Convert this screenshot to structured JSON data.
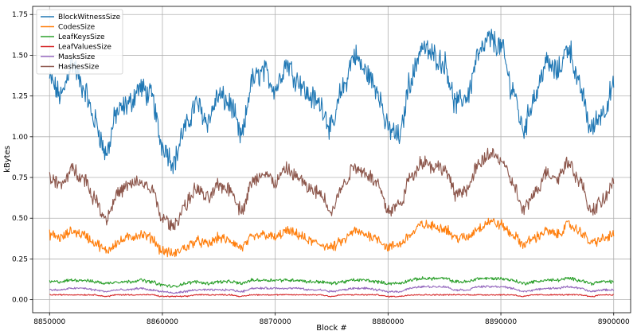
{
  "chart_data": {
    "type": "line",
    "title": "",
    "xlabel": "Block #",
    "ylabel": "kBytes",
    "xlim": [
      8848500,
      8901500
    ],
    "ylim": [
      -0.08,
      1.8
    ],
    "grid": true,
    "legend_position": "top-left",
    "xticks": [
      {
        "value": 8850000,
        "label": "8850000"
      },
      {
        "value": 8860000,
        "label": "8860000"
      },
      {
        "value": 8870000,
        "label": "8870000"
      },
      {
        "value": 8880000,
        "label": "8880000"
      },
      {
        "value": 8890000,
        "label": "8890000"
      },
      {
        "value": 8900000,
        "label": "8900000"
      }
    ],
    "yticks": [
      {
        "value": 0.0,
        "label": "0.00"
      },
      {
        "value": 0.25,
        "label": "0.25"
      },
      {
        "value": 0.5,
        "label": "0.50"
      },
      {
        "value": 0.75,
        "label": "0.75"
      },
      {
        "value": 1.0,
        "label": "1.00"
      },
      {
        "value": 1.25,
        "label": "1.25"
      },
      {
        "value": 1.5,
        "label": "1.50"
      },
      {
        "value": 1.75,
        "label": "1.75"
      }
    ],
    "x": [
      8850000,
      8851000,
      8852000,
      8853000,
      8854000,
      8855000,
      8856000,
      8857000,
      8858000,
      8859000,
      8860000,
      8861000,
      8862000,
      8863000,
      8864000,
      8865000,
      8866000,
      8867000,
      8868000,
      8869000,
      8870000,
      8871000,
      8872000,
      8873000,
      8874000,
      8875000,
      8876000,
      8877000,
      8878000,
      8879000,
      8880000,
      8881000,
      8882000,
      8883000,
      8884000,
      8885000,
      8886000,
      8887000,
      8888000,
      8889000,
      8890000,
      8891000,
      8892000,
      8893000,
      8894000,
      8895000,
      8896000,
      8897000,
      8898000,
      8899000,
      8900000
    ],
    "series": [
      {
        "name": "BlockWitnessSize",
        "color": "#1f77b4",
        "values": [
          1.35,
          1.25,
          1.45,
          1.3,
          1.1,
          0.9,
          1.15,
          1.2,
          1.3,
          1.25,
          0.95,
          0.85,
          1.05,
          1.2,
          1.1,
          1.25,
          1.2,
          1.0,
          1.35,
          1.4,
          1.3,
          1.45,
          1.35,
          1.25,
          1.2,
          1.05,
          1.3,
          1.5,
          1.4,
          1.3,
          1.05,
          1.0,
          1.35,
          1.55,
          1.5,
          1.45,
          1.2,
          1.25,
          1.5,
          1.6,
          1.55,
          1.3,
          1.05,
          1.25,
          1.45,
          1.4,
          1.55,
          1.3,
          1.05,
          1.15,
          1.3
        ]
      },
      {
        "name": "CodesSize",
        "color": "#ff7f0e",
        "values": [
          0.4,
          0.38,
          0.42,
          0.4,
          0.35,
          0.3,
          0.35,
          0.38,
          0.4,
          0.38,
          0.3,
          0.28,
          0.32,
          0.36,
          0.34,
          0.38,
          0.36,
          0.32,
          0.38,
          0.4,
          0.38,
          0.42,
          0.4,
          0.36,
          0.34,
          0.32,
          0.36,
          0.42,
          0.4,
          0.38,
          0.32,
          0.34,
          0.4,
          0.46,
          0.45,
          0.44,
          0.38,
          0.38,
          0.44,
          0.48,
          0.46,
          0.4,
          0.34,
          0.38,
          0.42,
          0.4,
          0.46,
          0.42,
          0.35,
          0.37,
          0.4
        ]
      },
      {
        "name": "LeafKeysSize",
        "color": "#2ca02c",
        "values": [
          0.11,
          0.11,
          0.12,
          0.12,
          0.11,
          0.1,
          0.11,
          0.11,
          0.12,
          0.11,
          0.09,
          0.08,
          0.1,
          0.11,
          0.1,
          0.11,
          0.11,
          0.1,
          0.12,
          0.12,
          0.12,
          0.12,
          0.12,
          0.11,
          0.11,
          0.1,
          0.11,
          0.12,
          0.12,
          0.11,
          0.1,
          0.1,
          0.12,
          0.13,
          0.13,
          0.13,
          0.11,
          0.11,
          0.13,
          0.13,
          0.13,
          0.12,
          0.1,
          0.11,
          0.12,
          0.12,
          0.13,
          0.12,
          0.1,
          0.11,
          0.11
        ]
      },
      {
        "name": "LeafValuesSize",
        "color": "#d62728",
        "values": [
          0.03,
          0.03,
          0.03,
          0.03,
          0.03,
          0.02,
          0.03,
          0.03,
          0.03,
          0.03,
          0.02,
          0.02,
          0.02,
          0.03,
          0.03,
          0.03,
          0.03,
          0.02,
          0.03,
          0.03,
          0.03,
          0.03,
          0.03,
          0.03,
          0.03,
          0.02,
          0.03,
          0.03,
          0.03,
          0.03,
          0.02,
          0.02,
          0.03,
          0.03,
          0.03,
          0.03,
          0.03,
          0.03,
          0.03,
          0.03,
          0.03,
          0.03,
          0.02,
          0.03,
          0.03,
          0.03,
          0.03,
          0.03,
          0.02,
          0.03,
          0.03
        ]
      },
      {
        "name": "MasksSize",
        "color": "#9467bd",
        "values": [
          0.06,
          0.06,
          0.07,
          0.07,
          0.06,
          0.05,
          0.06,
          0.06,
          0.07,
          0.06,
          0.05,
          0.04,
          0.05,
          0.06,
          0.06,
          0.06,
          0.06,
          0.05,
          0.07,
          0.07,
          0.07,
          0.07,
          0.07,
          0.06,
          0.06,
          0.05,
          0.06,
          0.07,
          0.07,
          0.06,
          0.05,
          0.05,
          0.07,
          0.08,
          0.08,
          0.08,
          0.06,
          0.06,
          0.08,
          0.08,
          0.08,
          0.07,
          0.05,
          0.06,
          0.07,
          0.07,
          0.08,
          0.07,
          0.05,
          0.06,
          0.06
        ]
      },
      {
        "name": "HashesSize",
        "color": "#8c564b",
        "values": [
          0.75,
          0.7,
          0.8,
          0.75,
          0.62,
          0.5,
          0.65,
          0.7,
          0.72,
          0.68,
          0.5,
          0.45,
          0.58,
          0.68,
          0.62,
          0.7,
          0.68,
          0.55,
          0.72,
          0.78,
          0.72,
          0.8,
          0.75,
          0.68,
          0.65,
          0.55,
          0.7,
          0.82,
          0.78,
          0.72,
          0.55,
          0.58,
          0.75,
          0.85,
          0.82,
          0.8,
          0.65,
          0.68,
          0.82,
          0.9,
          0.86,
          0.72,
          0.55,
          0.65,
          0.78,
          0.75,
          0.85,
          0.72,
          0.55,
          0.6,
          0.72
        ]
      }
    ]
  }
}
